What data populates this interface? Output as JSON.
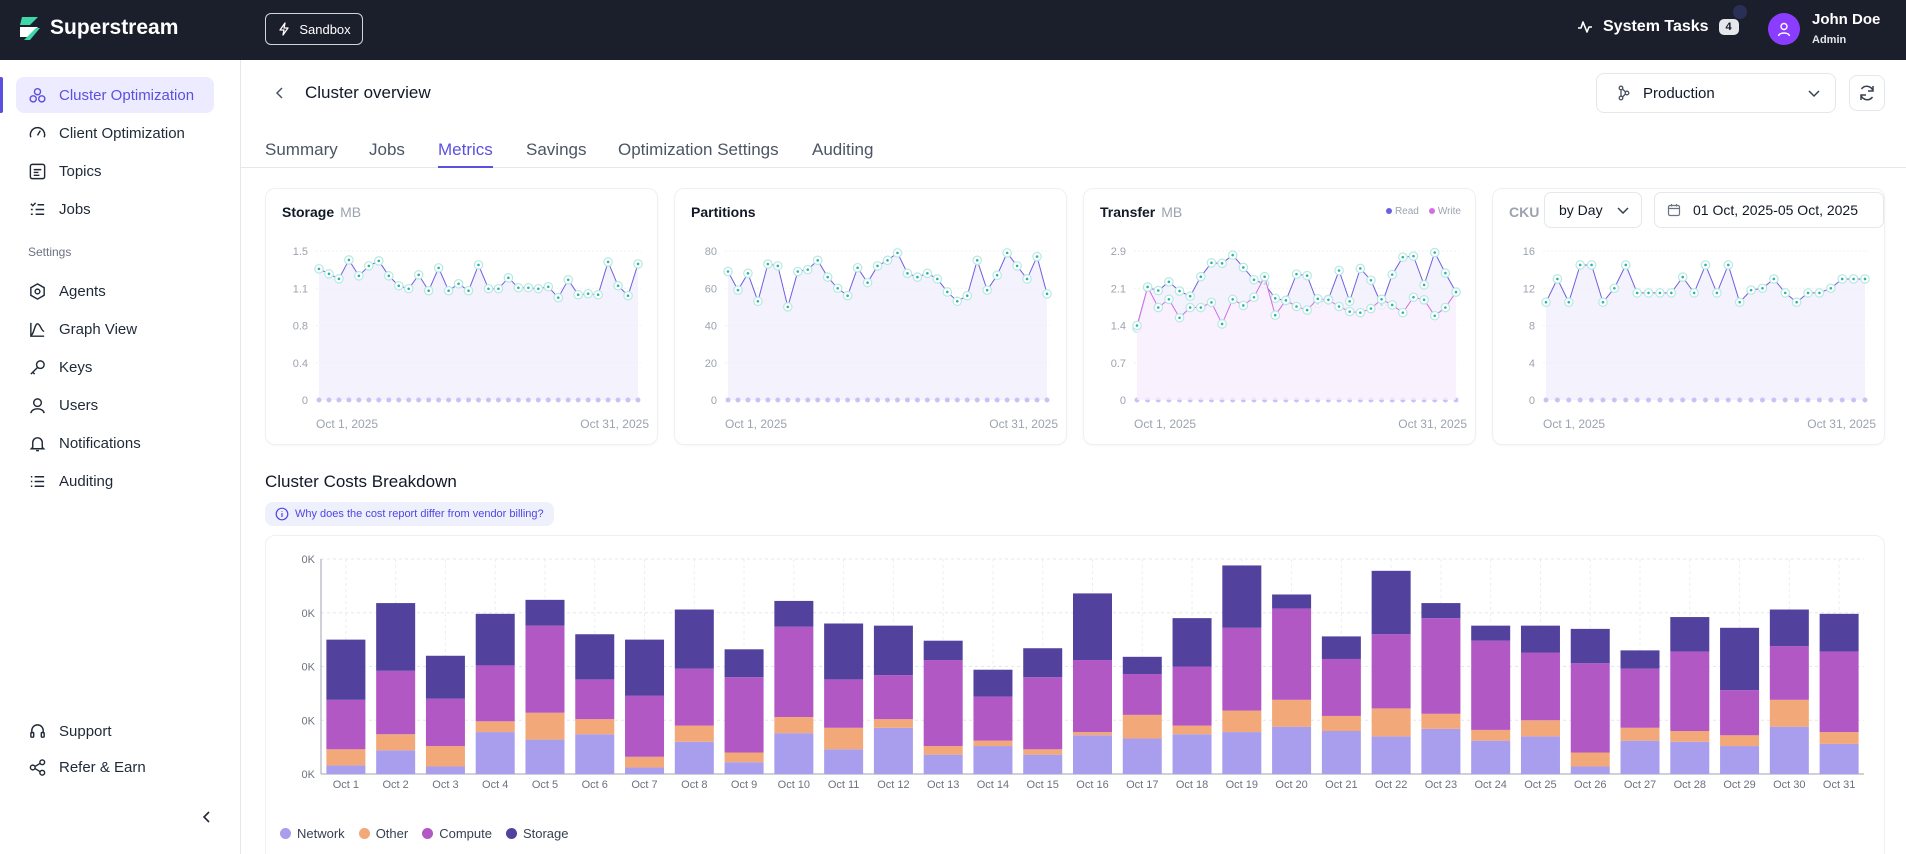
{
  "app": {
    "name": "Superstream",
    "env_badge": "Sandbox"
  },
  "header": {
    "system_tasks_label": "System Tasks",
    "system_tasks_count": "4",
    "user_name": "John Doe",
    "user_role": "Admin"
  },
  "sidebar": {
    "items": [
      {
        "label": "Cluster Optimization",
        "icon": "cluster-icon"
      },
      {
        "label": "Client Optimization",
        "icon": "gauge-icon"
      },
      {
        "label": "Topics",
        "icon": "topics-icon"
      },
      {
        "label": "Jobs",
        "icon": "list-check-icon"
      }
    ],
    "section_label": "Settings",
    "settings_items": [
      {
        "label": "Agents",
        "icon": "agents-icon"
      },
      {
        "label": "Graph View",
        "icon": "graph-icon"
      },
      {
        "label": "Keys",
        "icon": "key-icon"
      },
      {
        "label": "Users",
        "icon": "user-icon"
      },
      {
        "label": "Notifications",
        "icon": "bell-icon"
      },
      {
        "label": "Auditing",
        "icon": "list-icon"
      }
    ],
    "bottom_items": [
      {
        "label": "Support",
        "icon": "headset-icon"
      },
      {
        "label": "Refer & Earn",
        "icon": "share-icon"
      }
    ]
  },
  "page": {
    "title": "Cluster overview",
    "environment": "Production"
  },
  "tabs": [
    "Summary",
    "Jobs",
    "Metrics",
    "Savings",
    "Optimization Settings",
    "Auditing"
  ],
  "controls": {
    "period": "by Day",
    "date_from": "01 Oct, 2025",
    "date_sep": "-",
    "date_to": "05 Oct, 2025"
  },
  "metric_cards": [
    {
      "title": "Storage",
      "unit": "MB",
      "y_ticks": [
        "1.5",
        "1.1",
        "0.8",
        "0.4",
        "0"
      ],
      "x_start": "Oct 1, 2025",
      "x_end": "Oct 31, 2025",
      "series": [
        [
          1.32,
          1.27,
          1.22,
          1.41,
          1.25,
          1.35,
          1.4,
          1.25,
          1.15,
          1.12,
          1.26,
          1.1,
          1.33,
          1.1,
          1.17,
          1.1,
          1.36,
          1.12,
          1.12,
          1.23,
          1.13,
          1.13,
          1.12,
          1.14,
          1.03,
          1.21,
          1.06,
          1.07,
          1.06,
          1.39,
          1.15,
          1.05,
          1.37
        ]
      ]
    },
    {
      "title": "Partitions",
      "unit": "",
      "y_ticks": [
        "80",
        "60",
        "40",
        "20",
        "0"
      ],
      "x_start": "Oct 1, 2025",
      "x_end": "Oct 31, 2025",
      "series": [
        [
          69,
          59,
          68,
          53,
          73,
          72,
          50,
          69,
          70,
          75,
          66,
          60,
          56,
          71,
          63,
          72,
          75,
          79,
          68,
          66,
          68,
          65,
          58,
          53,
          56,
          75,
          59,
          67,
          79,
          72,
          65,
          77,
          57
        ]
      ]
    },
    {
      "title": "Transfer",
      "unit": "MB",
      "y_ticks": [
        "2.9",
        "2.1",
        "1.4",
        "0.7",
        "0"
      ],
      "x_start": "Oct 1, 2025",
      "x_end": "Oct 31, 2025",
      "legend": [
        "Read",
        "Write"
      ],
      "series": [
        [
          1.4,
          2.19,
          2.13,
          2.3,
          2.12,
          2.02,
          2.4,
          2.67,
          2.66,
          2.82,
          2.58,
          2.34,
          2.26,
          1.98,
          1.93,
          2.45,
          2.42,
          1.88,
          1.96,
          2.52,
          1.92,
          2.56,
          2.33,
          1.85,
          2.44,
          2.78,
          2.8,
          2.24,
          2.87,
          2.47,
          2.1
        ],
        [
          1.45,
          2.2,
          1.8,
          1.96,
          1.6,
          1.8,
          1.8,
          1.9,
          1.48,
          1.96,
          1.84,
          2.0,
          2.4,
          1.65,
          1.94,
          1.82,
          1.75,
          1.97,
          1.95,
          1.82,
          1.72,
          1.7,
          1.78,
          1.96,
          1.85,
          1.7,
          2.0,
          1.95,
          1.64,
          1.8,
          2.1
        ]
      ]
    },
    {
      "title": "CKU",
      "unit": "",
      "y_ticks": [
        "16",
        "12",
        "8",
        "4",
        "0"
      ],
      "x_start": "Oct 1, 2025",
      "x_end": "Oct 31, 2025",
      "series": [
        [
          10.5,
          13.0,
          10.5,
          14.5,
          14.5,
          10.5,
          12.0,
          14.5,
          11.5,
          11.5,
          11.5,
          11.5,
          13.2,
          11.5,
          14.5,
          11.5,
          14.5,
          10.5,
          11.8,
          12.0,
          13.0,
          11.5,
          10.5,
          11.5,
          11.5,
          12.0,
          13.0,
          13.0,
          13.0
        ]
      ]
    }
  ],
  "costs": {
    "title": "Cluster Costs Breakdown",
    "info_text": "Why does the cost report differ from vendor billing?",
    "y_ticks": [
      "0K",
      "0K",
      "0K",
      "0K",
      "0K"
    ],
    "colors": {
      "Network": "#a99ded",
      "Other": "#f2a878",
      "Compute": "#b258c5",
      "Storage": "#52429e"
    },
    "chart_data": {
      "type": "bar",
      "stacked": true,
      "categories": [
        "Oct 1",
        "Oct 2",
        "Oct 3",
        "Oct 4",
        "Oct 5",
        "Oct 6",
        "Oct 7",
        "Oct 8",
        "Oct 9",
        "Oct 10",
        "Oct 11",
        "Oct 12",
        "Oct 13",
        "Oct 14",
        "Oct 15",
        "Oct 16",
        "Oct 17",
        "Oct 18",
        "Oct 19",
        "Oct 20",
        "Oct 21",
        "Oct 22",
        "Oct 23",
        "Oct 24",
        "Oct 25",
        "Oct 26",
        "Oct 27",
        "Oct 28",
        "Oct 29",
        "Oct 30",
        "Oct 31"
      ],
      "series": [
        {
          "name": "Network",
          "values": [
            8,
            22,
            7,
            39,
            32,
            37,
            6,
            30,
            11,
            38,
            23,
            43,
            18,
            26,
            18,
            36,
            33,
            37,
            39,
            44,
            40,
            35,
            42,
            31,
            35,
            7,
            31,
            30,
            26,
            44,
            28
          ]
        },
        {
          "name": "Other",
          "values": [
            15,
            15,
            19,
            10,
            25,
            14,
            10,
            15,
            9,
            15,
            20,
            8,
            8,
            5,
            5,
            3,
            22,
            8,
            20,
            25,
            14,
            26,
            14,
            10,
            15,
            13,
            12,
            10,
            10,
            25,
            11
          ]
        },
        {
          "name": "Compute",
          "values": [
            46,
            59,
            44,
            52,
            81,
            37,
            57,
            53,
            70,
            84,
            45,
            41,
            80,
            41,
            67,
            67,
            38,
            55,
            77,
            85,
            53,
            69,
            89,
            83,
            63,
            83,
            55,
            74,
            42,
            50,
            75
          ]
        },
        {
          "name": "Storage",
          "values": [
            56,
            63,
            40,
            48,
            24,
            42,
            52,
            55,
            26,
            24,
            52,
            46,
            18,
            25,
            27,
            62,
            16,
            45,
            58,
            13,
            21,
            59,
            14,
            14,
            25,
            32,
            17,
            32,
            58,
            34,
            35
          ]
        }
      ],
      "ylim": [
        0,
        200
      ],
      "legend_position": "bottom-left"
    }
  }
}
